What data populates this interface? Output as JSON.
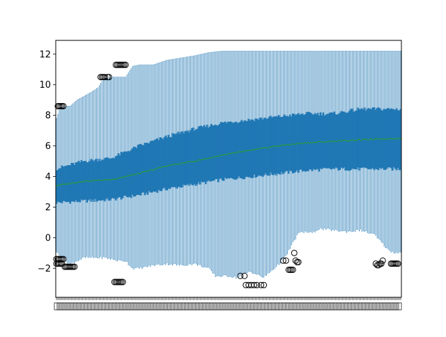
{
  "chart_data": {
    "type": "box",
    "title": "",
    "xlabel": "",
    "ylabel": "",
    "n_boxes": 250,
    "x_tick_labels_unreadable": true,
    "ylim": [
      -3.9,
      12.9
    ],
    "yticks": [
      -2,
      0,
      2,
      4,
      6,
      8,
      10,
      12
    ],
    "ytick_labels": [
      "−2",
      "0",
      "2",
      "4",
      "6",
      "8",
      "10",
      "12"
    ],
    "grid": false,
    "legend": "none",
    "colors": {
      "box": "#1f77b4",
      "median": "#2ca02c",
      "flier": "#000000",
      "axes": "#000000"
    },
    "profiles": {
      "upper_whisker": [
        [
          0,
          7.8
        ],
        [
          3,
          8.6
        ],
        [
          10,
          8.6
        ],
        [
          15,
          9.0
        ],
        [
          25,
          9.5
        ],
        [
          30,
          9.8
        ],
        [
          35,
          10.5
        ],
        [
          45,
          10.5
        ],
        [
          50,
          10.5
        ],
        [
          55,
          11.2
        ],
        [
          60,
          11.3
        ],
        [
          70,
          11.3
        ],
        [
          80,
          11.6
        ],
        [
          100,
          11.9
        ],
        [
          110,
          12.1
        ],
        [
          120,
          12.2
        ],
        [
          249,
          12.2
        ]
      ],
      "q3": [
        [
          0,
          4.5
        ],
        [
          20,
          5.0
        ],
        [
          40,
          5.2
        ],
        [
          60,
          6.0
        ],
        [
          80,
          6.6
        ],
        [
          100,
          7.1
        ],
        [
          120,
          7.5
        ],
        [
          140,
          7.7
        ],
        [
          160,
          7.9
        ],
        [
          180,
          8.1
        ],
        [
          200,
          8.1
        ],
        [
          220,
          8.4
        ],
        [
          249,
          8.4
        ]
      ],
      "median": [
        [
          0,
          3.4
        ],
        [
          20,
          3.7
        ],
        [
          40,
          3.8
        ],
        [
          60,
          4.2
        ],
        [
          80,
          4.7
        ],
        [
          100,
          5.0
        ],
        [
          120,
          5.4
        ],
        [
          140,
          5.7
        ],
        [
          160,
          6.0
        ],
        [
          180,
          6.2
        ],
        [
          200,
          6.3
        ],
        [
          220,
          6.4
        ],
        [
          249,
          6.5
        ]
      ],
      "q1": [
        [
          0,
          2.3
        ],
        [
          20,
          2.4
        ],
        [
          40,
          2.5
        ],
        [
          60,
          2.8
        ],
        [
          80,
          3.2
        ],
        [
          100,
          3.5
        ],
        [
          120,
          3.8
        ],
        [
          140,
          4.0
        ],
        [
          160,
          4.2
        ],
        [
          180,
          4.4
        ],
        [
          200,
          4.5
        ],
        [
          220,
          4.5
        ],
        [
          249,
          4.5
        ]
      ],
      "lower_whisker": [
        [
          0,
          -0.9
        ],
        [
          3,
          -1.3
        ],
        [
          10,
          -1.7
        ],
        [
          20,
          -1.3
        ],
        [
          35,
          -1.3
        ],
        [
          45,
          -1.5
        ],
        [
          50,
          -1.5
        ],
        [
          55,
          -2.0
        ],
        [
          60,
          -2.0
        ],
        [
          70,
          -1.8
        ],
        [
          80,
          -1.7
        ],
        [
          90,
          -1.8
        ],
        [
          100,
          -1.7
        ],
        [
          110,
          -2.0
        ],
        [
          115,
          -2.5
        ],
        [
          125,
          -2.5
        ],
        [
          130,
          -2.6
        ],
        [
          140,
          -2.2
        ],
        [
          150,
          -2.6
        ],
        [
          160,
          -1.8
        ],
        [
          166,
          -1.2
        ],
        [
          170,
          -0.5
        ],
        [
          175,
          0.3
        ],
        [
          180,
          0.4
        ],
        [
          185,
          0.3
        ],
        [
          190,
          0.6
        ],
        [
          200,
          0.5
        ],
        [
          210,
          0.4
        ],
        [
          220,
          0.5
        ],
        [
          230,
          0.2
        ],
        [
          235,
          -0.3
        ],
        [
          240,
          -0.8
        ],
        [
          245,
          -1.0
        ],
        [
          249,
          -0.9
        ]
      ]
    },
    "outliers": [
      {
        "x": 1,
        "y": 8.6
      },
      {
        "x": 2,
        "y": 8.6
      },
      {
        "x": 3,
        "y": 8.6
      },
      {
        "x": 4,
        "y": 8.6
      },
      {
        "x": 5,
        "y": 8.6
      },
      {
        "x": 0,
        "y": -1.4
      },
      {
        "x": 1,
        "y": -1.4
      },
      {
        "x": 2,
        "y": -1.4
      },
      {
        "x": 3,
        "y": -1.4
      },
      {
        "x": 4,
        "y": -1.4
      },
      {
        "x": 5,
        "y": -1.4
      },
      {
        "x": 0,
        "y": -1.7
      },
      {
        "x": 1,
        "y": -1.7
      },
      {
        "x": 2,
        "y": -1.7
      },
      {
        "x": 3,
        "y": -1.7
      },
      {
        "x": 4,
        "y": -1.7
      },
      {
        "x": 6,
        "y": -1.9
      },
      {
        "x": 7,
        "y": -1.9
      },
      {
        "x": 8,
        "y": -1.9
      },
      {
        "x": 9,
        "y": -1.9
      },
      {
        "x": 10,
        "y": -1.9
      },
      {
        "x": 11,
        "y": -1.9
      },
      {
        "x": 12,
        "y": -1.9
      },
      {
        "x": 13,
        "y": -1.9
      },
      {
        "x": 32,
        "y": 10.5
      },
      {
        "x": 33,
        "y": 10.5
      },
      {
        "x": 34,
        "y": 10.5
      },
      {
        "x": 35,
        "y": 10.5
      },
      {
        "x": 37,
        "y": 10.5
      },
      {
        "x": 38,
        "y": 10.5
      },
      {
        "x": 43,
        "y": 11.3
      },
      {
        "x": 44,
        "y": 11.3
      },
      {
        "x": 45,
        "y": 11.3
      },
      {
        "x": 46,
        "y": 11.3
      },
      {
        "x": 47,
        "y": 11.3
      },
      {
        "x": 48,
        "y": 11.3
      },
      {
        "x": 49,
        "y": 11.3
      },
      {
        "x": 50,
        "y": 11.3
      },
      {
        "x": 42,
        "y": -2.9
      },
      {
        "x": 43,
        "y": -2.9
      },
      {
        "x": 44,
        "y": -2.9
      },
      {
        "x": 45,
        "y": -2.9
      },
      {
        "x": 46,
        "y": -2.9
      },
      {
        "x": 47,
        "y": -2.9
      },
      {
        "x": 48,
        "y": -2.9
      },
      {
        "x": 133,
        "y": -2.5
      },
      {
        "x": 136,
        "y": -2.5
      },
      {
        "x": 137,
        "y": -3.1
      },
      {
        "x": 139,
        "y": -3.1
      },
      {
        "x": 141,
        "y": -3.1
      },
      {
        "x": 143,
        "y": -3.1
      },
      {
        "x": 145,
        "y": -3.1
      },
      {
        "x": 148,
        "y": -3.1
      },
      {
        "x": 150,
        "y": -3.1
      },
      {
        "x": 164,
        "y": -1.5
      },
      {
        "x": 166,
        "y": -1.5
      },
      {
        "x": 168,
        "y": -2.1
      },
      {
        "x": 169,
        "y": -2.1
      },
      {
        "x": 170,
        "y": -2.1
      },
      {
        "x": 171,
        "y": -2.1
      },
      {
        "x": 172,
        "y": -1.0
      },
      {
        "x": 173,
        "y": -1.5
      },
      {
        "x": 174,
        "y": -1.6
      },
      {
        "x": 175,
        "y": -1.6
      },
      {
        "x": 231,
        "y": -1.7
      },
      {
        "x": 232,
        "y": -1.8
      },
      {
        "x": 233,
        "y": -1.8
      },
      {
        "x": 234,
        "y": -1.7
      },
      {
        "x": 235,
        "y": -1.7
      },
      {
        "x": 236,
        "y": -1.5
      },
      {
        "x": 242,
        "y": -1.7
      },
      {
        "x": 243,
        "y": -1.7
      },
      {
        "x": 244,
        "y": -1.7
      },
      {
        "x": 245,
        "y": -1.7
      },
      {
        "x": 246,
        "y": -1.7
      },
      {
        "x": 247,
        "y": -1.7
      }
    ]
  }
}
